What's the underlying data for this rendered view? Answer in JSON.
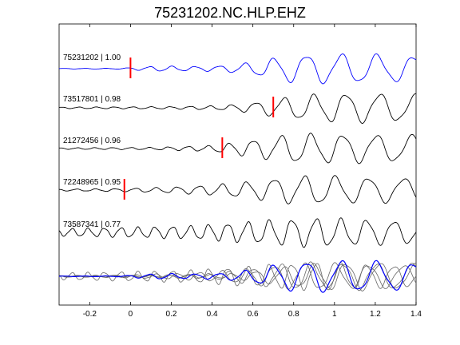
{
  "chart_data": {
    "type": "line",
    "title": "75231202.NC.HLP.EHZ",
    "xlabel": "",
    "ylabel": "",
    "xlim": [
      -0.35,
      1.4
    ],
    "xticks": [
      -0.2,
      0,
      0.2,
      0.4,
      0.6,
      0.8,
      1,
      1.2,
      1.4
    ],
    "xtick_labels": [
      "-0.2",
      "0",
      "0.2",
      "0.4",
      "0.6",
      "0.8",
      "1",
      "1.2",
      "1.4"
    ],
    "series": [
      {
        "name": "75231202 | 1.00",
        "color": "#0000ff",
        "pick_time": 0.0,
        "env": [
          [
            -0.35,
            0.02
          ],
          [
            -0.05,
            0.03
          ],
          [
            0.05,
            0.12
          ],
          [
            0.15,
            0.18
          ],
          [
            0.3,
            0.15
          ],
          [
            0.45,
            0.2
          ],
          [
            0.55,
            0.35
          ],
          [
            0.65,
            0.55
          ],
          [
            0.75,
            0.9
          ],
          [
            0.9,
            1.0
          ],
          [
            1.1,
            1.0
          ],
          [
            1.25,
            0.95
          ],
          [
            1.4,
            0.85
          ]
        ],
        "freq": [
          [
            -0.35,
            10
          ],
          [
            0.2,
            9
          ],
          [
            0.5,
            8
          ],
          [
            0.8,
            6
          ],
          [
            1.4,
            5.5
          ]
        ],
        "phase": 0.0
      },
      {
        "name": "73517801 | 0.98",
        "color": "#000000",
        "pick_time": 0.7,
        "env": [
          [
            -0.35,
            0.05
          ],
          [
            0.2,
            0.08
          ],
          [
            0.45,
            0.15
          ],
          [
            0.6,
            0.35
          ],
          [
            0.7,
            0.6
          ],
          [
            0.85,
            0.85
          ],
          [
            1.0,
            1.0
          ],
          [
            1.2,
            1.0
          ],
          [
            1.4,
            0.9
          ]
        ],
        "freq": [
          [
            -0.35,
            12
          ],
          [
            0.4,
            10
          ],
          [
            0.7,
            7
          ],
          [
            1.4,
            5.5
          ]
        ],
        "phase": 0.6
      },
      {
        "name": "21272456 | 0.96",
        "color": "#000000",
        "pick_time": 0.45,
        "env": [
          [
            -0.35,
            0.05
          ],
          [
            0.1,
            0.08
          ],
          [
            0.4,
            0.2
          ],
          [
            0.55,
            0.5
          ],
          [
            0.7,
            0.8
          ],
          [
            0.8,
            1.0
          ],
          [
            1.0,
            1.0
          ],
          [
            1.2,
            0.95
          ],
          [
            1.4,
            0.9
          ]
        ],
        "freq": [
          [
            -0.35,
            12
          ],
          [
            0.4,
            10
          ],
          [
            0.7,
            7
          ],
          [
            1.4,
            5.5
          ]
        ],
        "phase": 1.2
      },
      {
        "name": "72248965 | 0.95",
        "color": "#000000",
        "pick_time": -0.03,
        "env": [
          [
            -0.35,
            0.06
          ],
          [
            -0.05,
            0.1
          ],
          [
            0.2,
            0.2
          ],
          [
            0.4,
            0.35
          ],
          [
            0.6,
            0.6
          ],
          [
            0.75,
            0.9
          ],
          [
            0.9,
            1.0
          ],
          [
            1.1,
            0.9
          ],
          [
            1.4,
            0.8
          ]
        ],
        "freq": [
          [
            -0.35,
            11
          ],
          [
            0.4,
            9
          ],
          [
            0.7,
            7
          ],
          [
            1.4,
            5.5
          ]
        ],
        "phase": 2.0
      },
      {
        "name": "73587341 | 0.77",
        "color": "#000000",
        "env": [
          [
            -0.35,
            0.25
          ],
          [
            0.0,
            0.35
          ],
          [
            0.3,
            0.45
          ],
          [
            0.55,
            0.7
          ],
          [
            0.75,
            0.9
          ],
          [
            0.9,
            1.0
          ],
          [
            1.1,
            0.9
          ],
          [
            1.4,
            0.75
          ]
        ],
        "freq": [
          [
            -0.35,
            13
          ],
          [
            0.4,
            11
          ],
          [
            0.7,
            9
          ],
          [
            1.4,
            7
          ]
        ],
        "phase": 2.7
      }
    ]
  }
}
